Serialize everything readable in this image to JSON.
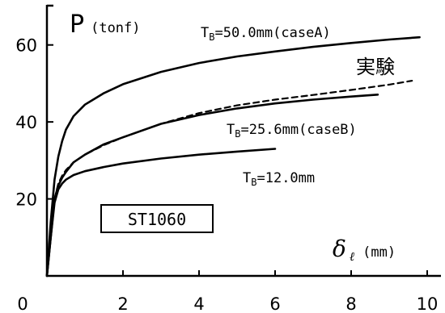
{
  "chart_data": {
    "type": "line",
    "ylabel_symbol": "P",
    "ylabel_unit": "(tonf)",
    "xlabel_symbol": "δ",
    "xlabel_sub": "ℓ",
    "xlabel_unit": "(mm)",
    "xlim": [
      0,
      10
    ],
    "ylim": [
      0,
      70
    ],
    "x_ticks": [
      "0",
      "2",
      "4",
      "6",
      "8",
      "10"
    ],
    "y_ticks": [
      "20",
      "40",
      "60"
    ],
    "specimen_label": "ST1060",
    "series": [
      {
        "name": "TB=50.0mm(caseA)",
        "label_prefix": "T",
        "label_sub": "B",
        "label_rest": "=50.0mm(caseA)",
        "style": "solid",
        "x": [
          0,
          0.1,
          0.2,
          0.3,
          0.4,
          0.5,
          0.7,
          1.0,
          1.5,
          2.0,
          3.0,
          4.0,
          5.0,
          6.0,
          7.0,
          8.0,
          9.0,
          9.8
        ],
        "y": [
          0,
          14,
          25,
          31,
          35,
          38,
          41.5,
          44.5,
          47.5,
          49.8,
          53,
          55.3,
          57,
          58.3,
          59.5,
          60.5,
          61.4,
          62
        ]
      },
      {
        "name": "実験",
        "style": "dashed",
        "x": [
          0,
          0.1,
          0.2,
          0.3,
          0.4,
          0.5,
          0.7,
          1.0,
          1.5,
          2.0,
          3.0,
          4.0,
          5.0,
          6.0,
          7.0,
          8.0,
          9.0,
          9.6
        ],
        "y": [
          0,
          10,
          20,
          24,
          26,
          27.5,
          29.5,
          31.5,
          34,
          36,
          39.5,
          42.3,
          44.3,
          45.8,
          47,
          48.3,
          49.7,
          50.7
        ]
      },
      {
        "name": "TB=25.6mm(caseB)",
        "label_prefix": "T",
        "label_sub": "B",
        "label_rest": "=25.6mm(caseB)",
        "style": "solid",
        "x": [
          0,
          0.1,
          0.2,
          0.3,
          0.4,
          0.5,
          0.7,
          1.0,
          1.5,
          2.0,
          3.0,
          4.0,
          5.0,
          6.0,
          7.0,
          8.0,
          8.7
        ],
        "y": [
          0,
          10,
          20,
          23.5,
          25.5,
          27,
          29.5,
          31.5,
          34.2,
          36,
          39.5,
          41.8,
          43.5,
          44.8,
          45.8,
          46.6,
          47.1
        ]
      },
      {
        "name": "TB=12.0mm",
        "label_prefix": "T",
        "label_sub": "B",
        "label_rest": "=12.0mm",
        "style": "solid",
        "x": [
          0,
          0.1,
          0.2,
          0.3,
          0.4,
          0.5,
          0.7,
          1.0,
          1.5,
          2.0,
          3.0,
          4.0,
          5.0,
          6.0
        ],
        "y": [
          0,
          10,
          19,
          22.5,
          24,
          25,
          26.2,
          27.2,
          28.3,
          29.2,
          30.5,
          31.5,
          32.3,
          33
        ]
      }
    ]
  }
}
